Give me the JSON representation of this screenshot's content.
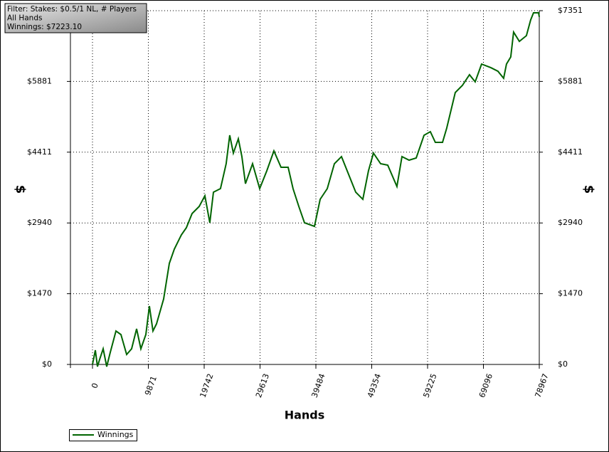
{
  "chart_data": {
    "type": "line",
    "annotation": [
      "Filter: Stakes: $0.5/1 NL, # Players",
      "All Hands",
      "Winnings: $7223.10"
    ],
    "x_label": "Hands",
    "y_label": "$",
    "y2_label": "$",
    "x": [
      0,
      500,
      880,
      1260,
      1890,
      2510,
      3140,
      4150,
      5030,
      6030,
      6910,
      7790,
      8550,
      9430,
      10060,
      10690,
      11310,
      12570,
      13580,
      14460,
      15710,
      16590,
      17600,
      18860,
      19860,
      20740,
      21370,
      22620,
      23630,
      24260,
      24890,
      25770,
      26400,
      27030,
      28290,
      29550,
      30800,
      32060,
      33320,
      34580,
      35450,
      36460,
      37470,
      39230,
      40240,
      41490,
      42750,
      44010,
      45270,
      46520,
      47780,
      48780,
      49660,
      50920,
      52180,
      53810,
      54700,
      55950,
      57210,
      58590,
      59720,
      60600,
      61860,
      62610,
      64120,
      65370,
      66630,
      67640,
      68770,
      70410,
      71660,
      72670,
      73170,
      73930,
      74430,
      75440,
      76690,
      77450,
      77950,
      78840,
      78967
    ],
    "series": [
      {
        "name": "Winnings",
        "color": "#006400",
        "values": [
          0,
          296,
          -44,
          104,
          325,
          -44,
          251,
          695,
          621,
          207,
          325,
          740,
          325,
          621,
          1213,
          695,
          843,
          1361,
          2100,
          2396,
          2692,
          2840,
          3135,
          3283,
          3505,
          2943,
          3579,
          3653,
          4171,
          4762,
          4392,
          4688,
          4319,
          3757,
          4171,
          3653,
          4023,
          4437,
          4097,
          4097,
          3653,
          3283,
          2943,
          2869,
          3431,
          3653,
          4171,
          4319,
          3949,
          3579,
          3431,
          4023,
          4392,
          4171,
          4142,
          3697,
          4319,
          4245,
          4289,
          4762,
          4836,
          4614,
          4614,
          4910,
          5650,
          5798,
          6020,
          5872,
          6241,
          6167,
          6093,
          5946,
          6241,
          6389,
          6906,
          6714,
          6832,
          7158,
          7306,
          7306,
          7223
        ]
      }
    ],
    "xlim": [
      -3900,
      78967
    ],
    "xticks": [
      0,
      9871,
      19742,
      29613,
      39484,
      49354,
      59225,
      69096,
      78967
    ],
    "ylim": [
      0,
      7351
    ],
    "yticks": [
      {
        "value": 0,
        "label": "$0"
      },
      {
        "value": 1470,
        "label": "$1470"
      },
      {
        "value": 2940,
        "label": "$2940"
      },
      {
        "value": 4411,
        "label": "$4411"
      },
      {
        "value": 5881,
        "label": "$5881"
      },
      {
        "value": 7351,
        "label": "$7351"
      }
    ],
    "y2lim": [
      0,
      7351
    ],
    "y2ticks": [
      {
        "value": 0,
        "label": "$0"
      },
      {
        "value": 1470,
        "label": "$1470"
      },
      {
        "value": 2940,
        "label": "$2940"
      },
      {
        "value": 4411,
        "label": "$4411"
      },
      {
        "value": 5881,
        "label": "$5881"
      },
      {
        "value": 7351,
        "label": "$7351"
      }
    ],
    "grid": true,
    "legend": "bottom-left"
  }
}
